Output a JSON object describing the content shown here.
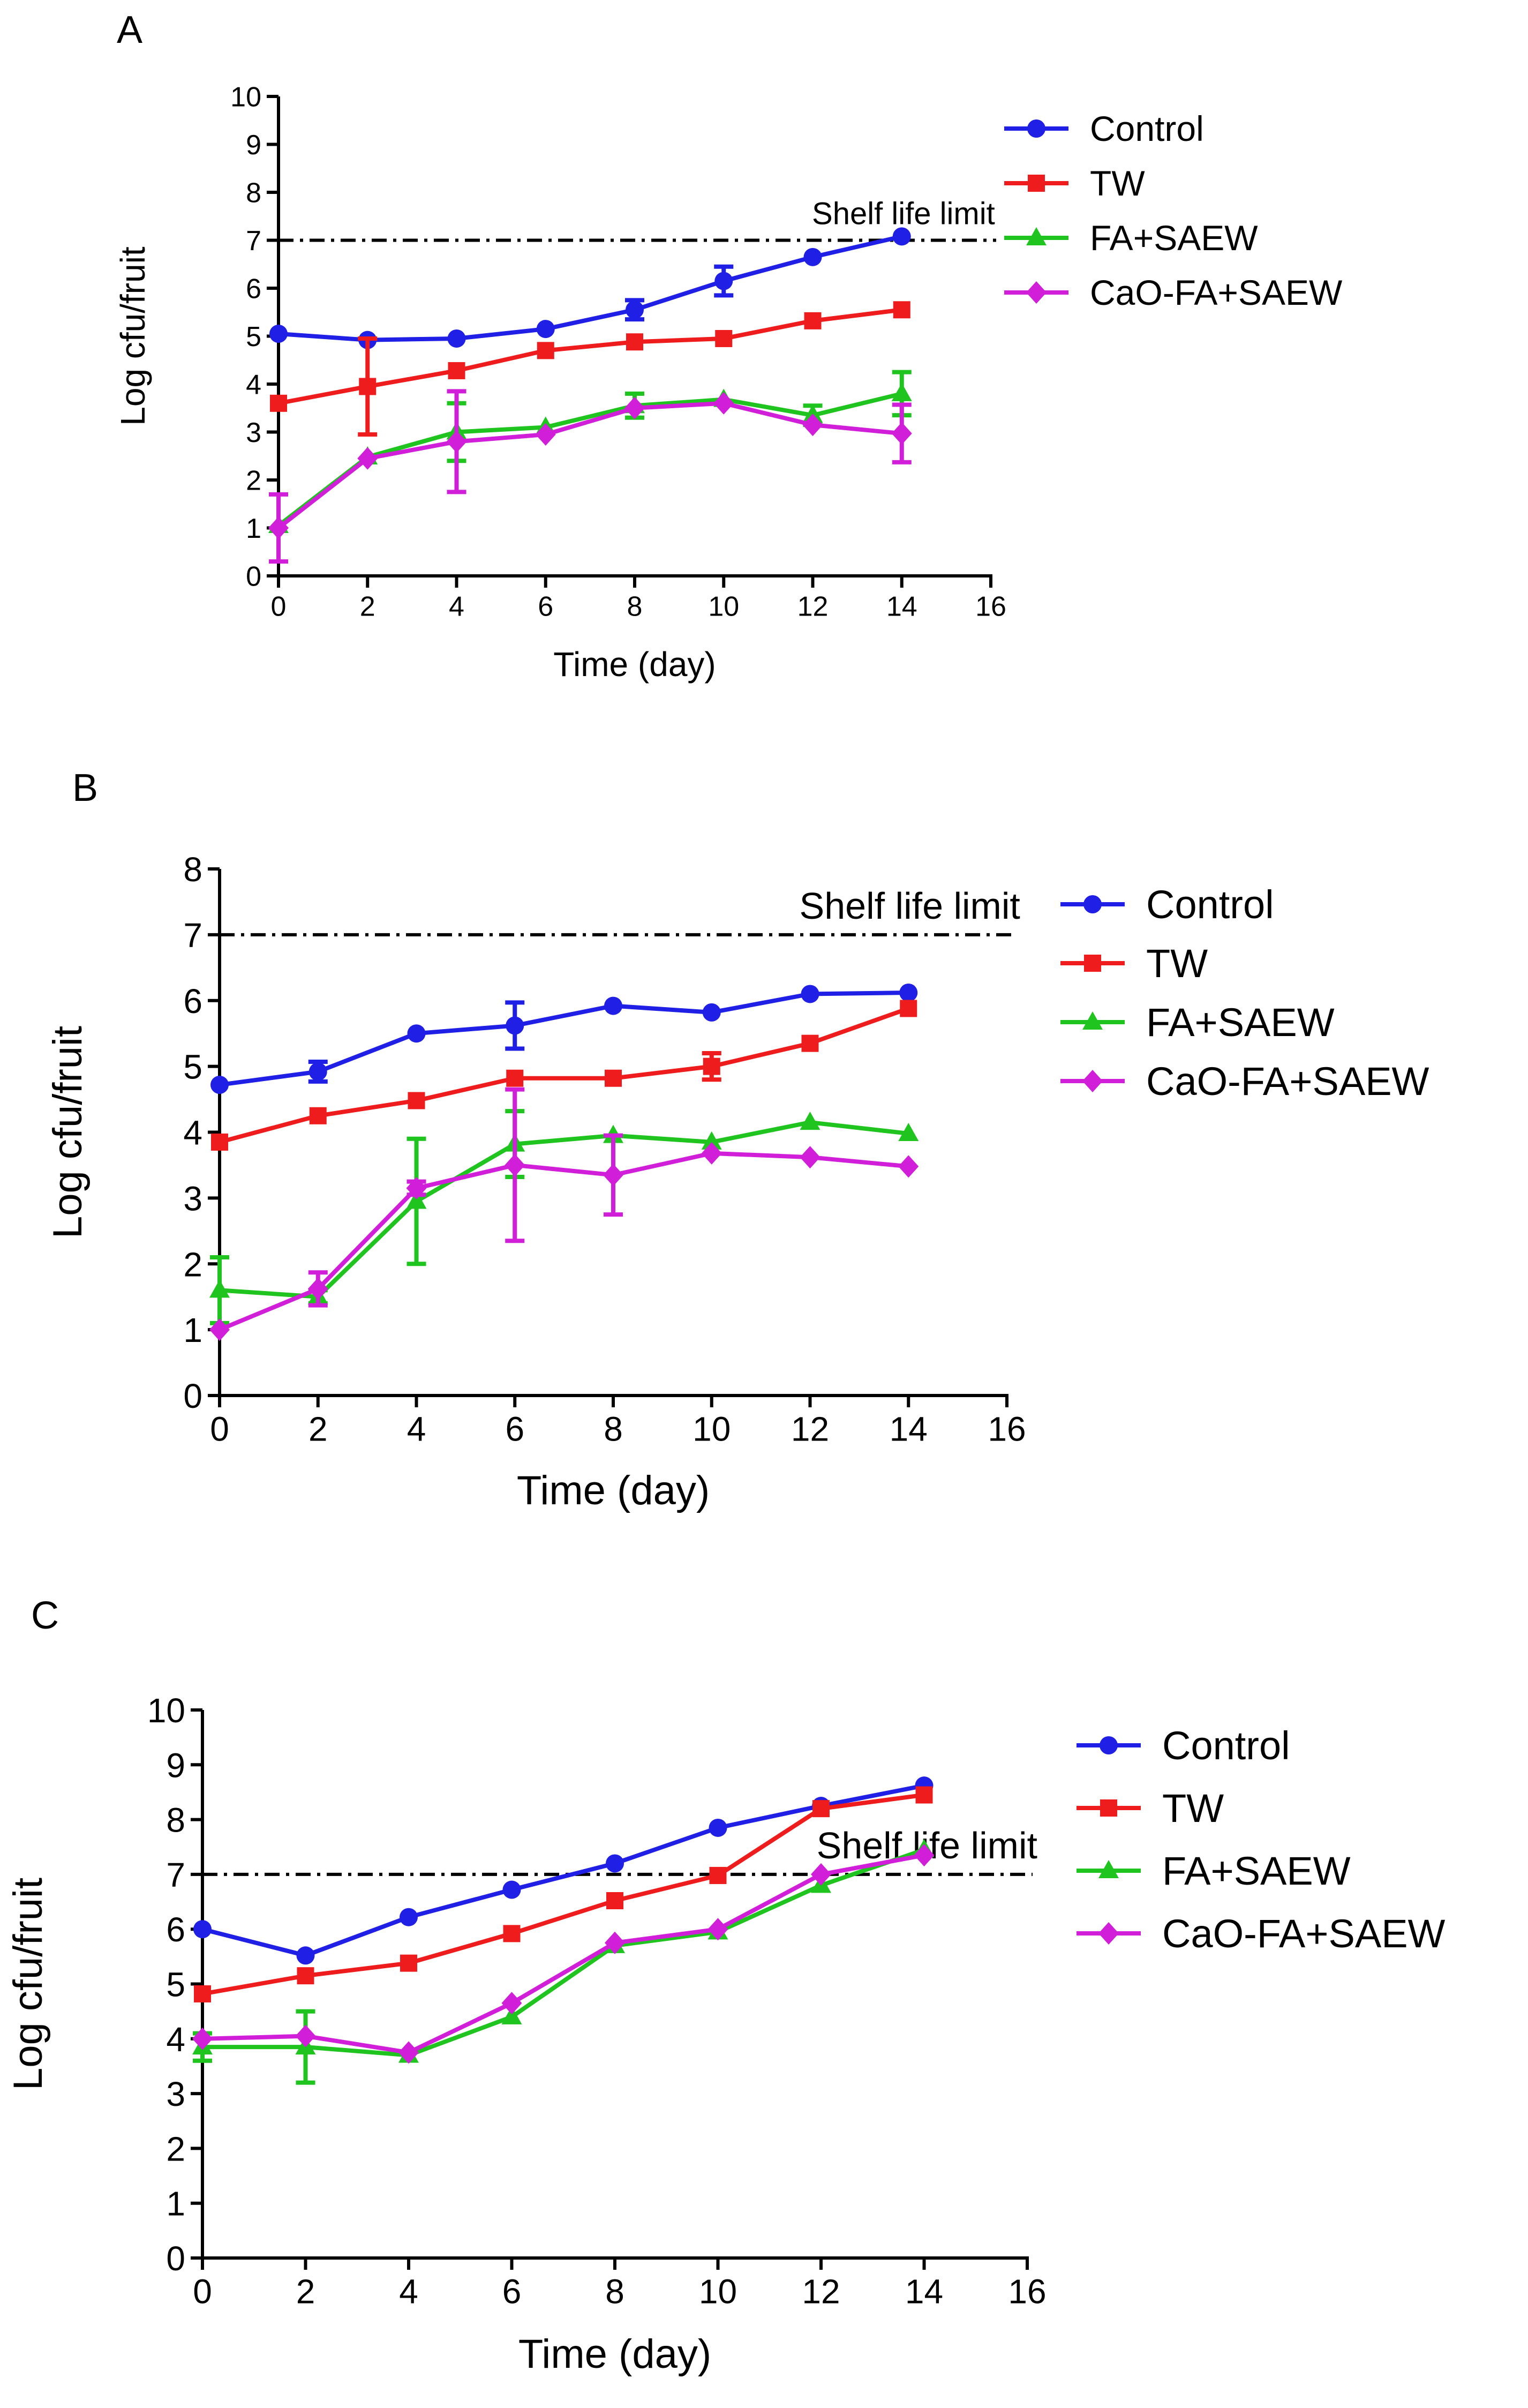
{
  "series_colors": {
    "Control": "#1f1fe6",
    "TW": "#ee1c1c",
    "FA+SAEW": "#1fc41f",
    "CaO-FA+SAEW": "#d11fd9"
  },
  "series_markers": {
    "Control": "circle",
    "TW": "square",
    "FA+SAEW": "triangle",
    "CaO-FA+SAEW": "diamond"
  },
  "chart_data": [
    {
      "panel": "A",
      "type": "line",
      "xlabel": "Time (day)",
      "ylabel": "Log cfu/fruit",
      "xlim": [
        0,
        16
      ],
      "ylim": [
        0,
        10
      ],
      "xticks": [
        0,
        2,
        4,
        6,
        8,
        10,
        12,
        14,
        16
      ],
      "yticks": [
        0,
        1,
        2,
        3,
        4,
        5,
        6,
        7,
        8,
        9,
        10
      ],
      "threshold": {
        "value": 7,
        "label": "Shelf life limit"
      },
      "legend": [
        "Control",
        "TW",
        "FA+SAEW",
        "CaO-FA+SAEW"
      ],
      "x": [
        0,
        2,
        4,
        6,
        8,
        10,
        12,
        14
      ],
      "series": [
        {
          "name": "Control",
          "values": [
            5.05,
            4.92,
            4.95,
            5.15,
            5.55,
            6.15,
            6.65,
            7.08
          ],
          "errors": [
            0.05,
            0.08,
            0.05,
            0.08,
            0.2,
            0.3,
            0.08,
            0.05
          ]
        },
        {
          "name": "TW",
          "values": [
            3.6,
            3.95,
            4.28,
            4.7,
            4.88,
            4.95,
            5.32,
            5.55
          ],
          "errors": [
            0.08,
            1.0,
            0.08,
            0.08,
            0.08,
            0.08,
            0.08,
            0.08
          ]
        },
        {
          "name": "FA+SAEW",
          "values": [
            1.05,
            2.48,
            3.0,
            3.1,
            3.55,
            3.68,
            3.35,
            3.8
          ],
          "errors": [
            0.08,
            0.08,
            0.6,
            0.08,
            0.25,
            0.08,
            0.2,
            0.45
          ]
        },
        {
          "name": "CaO-FA+SAEW",
          "values": [
            1.0,
            2.45,
            2.8,
            2.95,
            3.5,
            3.6,
            3.15,
            2.97
          ],
          "errors": [
            0.7,
            0.08,
            1.05,
            0.08,
            0.08,
            0.08,
            0.08,
            0.6
          ]
        }
      ]
    },
    {
      "panel": "B",
      "type": "line",
      "xlabel": "Time (day)",
      "ylabel": "Log cfu/fruit",
      "xlim": [
        0,
        16
      ],
      "ylim": [
        0,
        8
      ],
      "xticks": [
        0,
        2,
        4,
        6,
        8,
        10,
        12,
        14,
        16
      ],
      "yticks": [
        0,
        1,
        2,
        3,
        4,
        5,
        6,
        7,
        8
      ],
      "threshold": {
        "value": 7,
        "label": "Shelf life limit"
      },
      "legend": [
        "Control",
        "TW",
        "FA+SAEW",
        "CaO-FA+SAEW"
      ],
      "x": [
        0,
        2,
        4,
        6,
        8,
        10,
        12,
        14
      ],
      "series": [
        {
          "name": "Control",
          "values": [
            4.72,
            4.92,
            5.5,
            5.62,
            5.92,
            5.82,
            6.1,
            6.12
          ],
          "errors": [
            0.05,
            0.15,
            0.05,
            0.35,
            0.05,
            0.05,
            0.05,
            0.05
          ]
        },
        {
          "name": "TW",
          "values": [
            3.85,
            4.25,
            4.48,
            4.82,
            4.82,
            5.0,
            5.35,
            5.88
          ],
          "errors": [
            0.05,
            0.05,
            0.05,
            0.05,
            0.05,
            0.2,
            0.05,
            0.05
          ]
        },
        {
          "name": "FA+SAEW",
          "values": [
            1.6,
            1.5,
            2.95,
            3.82,
            3.95,
            3.85,
            4.15,
            3.98
          ],
          "errors": [
            0.5,
            0.1,
            0.95,
            0.5,
            0.05,
            0.05,
            0.05,
            0.05
          ]
        },
        {
          "name": "CaO-FA+SAEW",
          "values": [
            1.0,
            1.62,
            3.15,
            3.5,
            3.35,
            3.68,
            3.62,
            3.48
          ],
          "errors": [
            0.05,
            0.25,
            0.1,
            1.15,
            0.6,
            0.05,
            0.05,
            0.05
          ]
        }
      ]
    },
    {
      "panel": "C",
      "type": "line",
      "xlabel": "Time (day)",
      "ylabel": "Log cfu/fruit",
      "xlim": [
        0,
        16
      ],
      "ylim": [
        0,
        10
      ],
      "xticks": [
        0,
        2,
        4,
        6,
        8,
        10,
        12,
        14,
        16
      ],
      "yticks": [
        0,
        1,
        2,
        3,
        4,
        5,
        6,
        7,
        8,
        9,
        10
      ],
      "threshold": {
        "value": 7,
        "label": "Shelf life limit"
      },
      "legend": [
        "Control",
        "TW",
        "FA+SAEW",
        "CaO-FA+SAEW"
      ],
      "x": [
        0,
        2,
        4,
        6,
        8,
        10,
        12,
        14
      ],
      "series": [
        {
          "name": "Control",
          "values": [
            6.0,
            5.52,
            6.22,
            6.72,
            7.2,
            7.85,
            8.25,
            8.62
          ],
          "errors": [
            0.05,
            0.05,
            0.05,
            0.05,
            0.05,
            0.05,
            0.05,
            0.05
          ]
        },
        {
          "name": "TW",
          "values": [
            4.82,
            5.15,
            5.38,
            5.92,
            6.52,
            6.98,
            8.2,
            8.45
          ],
          "errors": [
            0.05,
            0.05,
            0.05,
            0.05,
            0.05,
            0.05,
            0.05,
            0.05
          ]
        },
        {
          "name": "FA+SAEW",
          "values": [
            3.85,
            3.85,
            3.7,
            4.4,
            5.7,
            5.95,
            6.8,
            7.45
          ],
          "errors": [
            0.25,
            0.65,
            0.05,
            0.05,
            0.05,
            0.05,
            0.05,
            0.05
          ]
        },
        {
          "name": "CaO-FA+SAEW",
          "values": [
            4.0,
            4.05,
            3.75,
            4.65,
            5.75,
            6.0,
            7.0,
            7.35
          ],
          "errors": [
            0.05,
            0.05,
            0.05,
            0.05,
            0.05,
            0.05,
            0.05,
            0.05
          ]
        }
      ]
    }
  ]
}
